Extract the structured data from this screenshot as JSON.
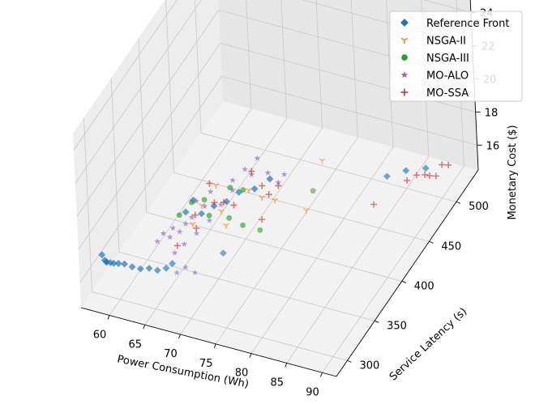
{
  "chart_data": {
    "type": "scatter",
    "projection": "3d",
    "title": "",
    "xlabel": "Power Consumption (Wh)",
    "ylabel": "Service Latency (s)",
    "zlabel": "Monetary Cost ($)",
    "xlim": [
      56,
      92
    ],
    "ylim": [
      280,
      540
    ],
    "zlim": [
      14.5,
      25
    ],
    "xticks": [
      60,
      65,
      70,
      75,
      80,
      85,
      90
    ],
    "yticks": [
      300,
      350,
      400,
      450,
      500
    ],
    "zticks": [
      16,
      18,
      20,
      22,
      24
    ],
    "grid": true,
    "legend_position": "top-right",
    "series": [
      {
        "name": "Reference Front",
        "marker": "diamond",
        "color": "#1f77b4",
        "points": [
          [
            58.5,
            290,
            17.5
          ],
          [
            58.7,
            292,
            17.1
          ],
          [
            58.8,
            294,
            16.9
          ],
          [
            58.6,
            296,
            16.8
          ],
          [
            59.0,
            298,
            16.7
          ],
          [
            59.3,
            300,
            16.6
          ],
          [
            59.8,
            302,
            16.55
          ],
          [
            60.5,
            304,
            16.5
          ],
          [
            61.5,
            305,
            16.4
          ],
          [
            62.5,
            307,
            16.3
          ],
          [
            63.5,
            310,
            16.3
          ],
          [
            64.5,
            312,
            16.2
          ],
          [
            65.5,
            315,
            16.3
          ],
          [
            66.0,
            320,
            16.4
          ],
          [
            66.5,
            355,
            18.6
          ],
          [
            67.0,
            335,
            18.9
          ],
          [
            68.0,
            350,
            18.2
          ],
          [
            69.0,
            360,
            18.3
          ],
          [
            70.0,
            370,
            18.2
          ],
          [
            71.0,
            380,
            18.4
          ],
          [
            72.0,
            395,
            18.0
          ],
          [
            73.0,
            410,
            18.0
          ],
          [
            72.5,
            330,
            17.3
          ],
          [
            86.0,
            455,
            17.5
          ],
          [
            87.5,
            470,
            17.3
          ],
          [
            89.5,
            480,
            17.2
          ]
        ]
      },
      {
        "name": "NSGA-II",
        "marker": "tri_down",
        "color": "#ff7f0e",
        "points": [
          [
            67.5,
            340,
            18.0
          ],
          [
            68.5,
            345,
            19.0
          ],
          [
            70.0,
            360,
            18.1
          ],
          [
            71.0,
            355,
            17.6
          ],
          [
            69.0,
            365,
            19.3
          ],
          [
            72.0,
            385,
            18.4
          ],
          [
            73.0,
            395,
            17.6
          ],
          [
            76.5,
            375,
            18.8
          ],
          [
            80.5,
            380,
            18.4
          ],
          [
            83.5,
            375,
            22.0
          ]
        ]
      },
      {
        "name": "NSGA-III",
        "marker": "circle",
        "color": "#2ca02c",
        "points": [
          [
            66.5,
            330,
            18.9
          ],
          [
            67.5,
            340,
            19.3
          ],
          [
            68.5,
            350,
            19.1
          ],
          [
            69.5,
            345,
            18.5
          ],
          [
            71.0,
            365,
            19.4
          ],
          [
            72.0,
            375,
            18.9
          ],
          [
            71.5,
            355,
            18.1
          ],
          [
            73.0,
            360,
            17.6
          ],
          [
            75.0,
            365,
            17.3
          ],
          [
            82.0,
            375,
            20.0
          ]
        ]
      },
      {
        "name": "MO-ALO",
        "marker": "star",
        "color": "#9467bd",
        "points": [
          [
            64.0,
            320,
            17.5
          ],
          [
            64.5,
            325,
            17.8
          ],
          [
            65.0,
            330,
            17.4
          ],
          [
            65.5,
            330,
            18.0
          ],
          [
            66.0,
            335,
            17.6
          ],
          [
            66.5,
            340,
            17.9
          ],
          [
            67.0,
            345,
            18.1
          ],
          [
            66.0,
            325,
            16.8
          ],
          [
            67.0,
            330,
            17.2
          ],
          [
            68.0,
            340,
            17.5
          ],
          [
            68.5,
            350,
            18.7
          ],
          [
            69.0,
            355,
            19.4
          ],
          [
            69.5,
            345,
            18.2
          ],
          [
            70.0,
            360,
            18.5
          ],
          [
            71.0,
            370,
            19.6
          ],
          [
            72.0,
            380,
            19.9
          ],
          [
            73.0,
            390,
            20.2
          ],
          [
            74.0,
            395,
            19.2
          ],
          [
            75.0,
            400,
            18.5
          ],
          [
            75.5,
            405,
            18.8
          ],
          [
            67.0,
            315,
            16.2
          ],
          [
            68.0,
            318,
            16.5
          ],
          [
            69.0,
            322,
            16.1
          ],
          [
            66.5,
            360,
            18.3
          ],
          [
            70.5,
            375,
            18.7
          ],
          [
            72.5,
            385,
            19.4
          ]
        ]
      },
      {
        "name": "MO-SSA",
        "marker": "plus",
        "color": "#d62728",
        "points": [
          [
            66.0,
            330,
            17.0
          ],
          [
            67.5,
            345,
            18.3
          ],
          [
            68.5,
            360,
            19.6
          ],
          [
            69.5,
            355,
            18.8
          ],
          [
            70.0,
            365,
            18.4
          ],
          [
            71.0,
            370,
            18.1
          ],
          [
            72.5,
            385,
            19.6
          ],
          [
            73.5,
            390,
            18.6
          ],
          [
            74.0,
            395,
            17.9
          ],
          [
            75.0,
            400,
            18.3
          ],
          [
            74.5,
            375,
            17.4
          ],
          [
            68.0,
            340,
            17.8
          ],
          [
            86.0,
            430,
            17.0
          ],
          [
            88.0,
            465,
            17.0
          ],
          [
            89.0,
            470,
            17.2
          ],
          [
            90.0,
            480,
            16.8
          ],
          [
            91.0,
            490,
            17.1
          ],
          [
            90.5,
            485,
            16.6
          ],
          [
            89.5,
            478,
            16.9
          ],
          [
            91.5,
            495,
            16.9
          ]
        ]
      }
    ]
  }
}
